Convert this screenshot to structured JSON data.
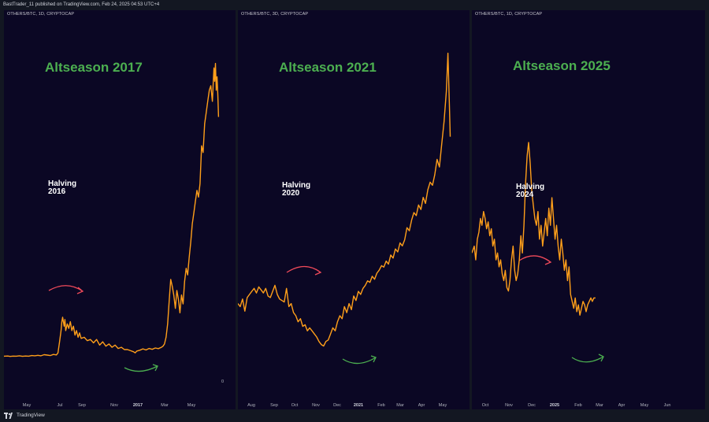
{
  "header": {
    "published": "BastTrader_11 published on TradingView.com, Feb 24, 2025 04:53 UTC+4"
  },
  "footer": {
    "brand": "TradingView"
  },
  "colors": {
    "line": "#ff9f1a",
    "title": "#4caf50",
    "red_arrow": "#f04a5a",
    "green_arrow": "#4caf50",
    "panel_bg": "#0b0724"
  },
  "icons": {
    "logo": "tradingview-logo-icon"
  },
  "chart_data": [
    {
      "type": "line",
      "symbol_label": "OTHERS/BTC, 1D, CRYPTOCAP",
      "title": "Altseason 2017",
      "annotation": "Halving 2016",
      "annotation_lines": [
        "Halving",
        "2016"
      ],
      "x_ticks": [
        "May",
        "Jul",
        "Sep",
        "Nov",
        "2017",
        "Mar",
        "May"
      ],
      "x_ticks_bold": [
        false,
        false,
        false,
        false,
        true,
        false,
        false
      ],
      "y_label": "0",
      "x": [
        0,
        5,
        8,
        12,
        16,
        20,
        24,
        28,
        32,
        36,
        40,
        44,
        48,
        52,
        56,
        60,
        64,
        68,
        70,
        72,
        74,
        75,
        76,
        78,
        79,
        80,
        82,
        84,
        86,
        88,
        90,
        92,
        94,
        96,
        98,
        100,
        104,
        108,
        112,
        116,
        120,
        124,
        128,
        132,
        136,
        140,
        144,
        148,
        152,
        156,
        160,
        164,
        168,
        170,
        172,
        176,
        180,
        184,
        188,
        192,
        196,
        200,
        204,
        206,
        208,
        210,
        212,
        214,
        216,
        218,
        220,
        222,
        224,
        226,
        228,
        230,
        232,
        234,
        236,
        238,
        240,
        242,
        244,
        246,
        248,
        250,
        252,
        254,
        256,
        258,
        260,
        262,
        264,
        266,
        268,
        270,
        272,
        273,
        274,
        275,
        276,
        277,
        278
      ],
      "y": [
        0.5,
        0.6,
        0.4,
        0.55,
        0.5,
        0.7,
        0.45,
        0.6,
        0.5,
        0.8,
        0.7,
        0.9,
        0.7,
        1.2,
        1.0,
        0.8,
        1.3,
        1.1,
        2.0,
        7.0,
        12.0,
        16.0,
        18.0,
        14.0,
        17.0,
        12.0,
        15.0,
        13.0,
        16.0,
        12.0,
        14.0,
        10.0,
        12.0,
        9.0,
        11.0,
        8.5,
        9.0,
        7.5,
        8.0,
        6.5,
        8.0,
        5.5,
        7.0,
        5.0,
        6.0,
        4.5,
        5.5,
        4.0,
        4.5,
        3.5,
        3.5,
        3.0,
        2.5,
        2.0,
        2.8,
        3.2,
        3.8,
        3.3,
        4.0,
        3.6,
        4.2,
        3.9,
        4.5,
        5.0,
        6.0,
        9.0,
        15.0,
        25.0,
        35.0,
        32.0,
        28.0,
        22.0,
        30.0,
        26.0,
        20.0,
        28.0,
        24.0,
        34.0,
        40.0,
        37.0,
        45.0,
        52.0,
        60.0,
        65.0,
        70.0,
        75.0,
        72.0,
        78.0,
        95.0,
        92.0,
        105.0,
        110.0,
        115.0,
        120.0,
        122.0,
        115.0,
        130.0,
        124.0,
        132.0,
        120.0,
        126.0,
        118.0,
        108.0
      ],
      "x_range": [
        0,
        300
      ],
      "y_range": [
        -5,
        140
      ]
    },
    {
      "type": "line",
      "symbol_label": "OTHERS/BTC, 3D, CRYPTOCAP",
      "title": "Altseason 2021",
      "annotation": "Halving 2020",
      "annotation_lines": [
        "Halving",
        "2020"
      ],
      "x_ticks": [
        "Aug",
        "Sep",
        "Oct",
        "Nov",
        "Dec",
        "2021",
        "Feb",
        "Mar",
        "Apr",
        "May"
      ],
      "x_ticks_bold": [
        false,
        false,
        false,
        false,
        false,
        true,
        false,
        false,
        false,
        false
      ],
      "y_label": "",
      "x": [
        0,
        3,
        6,
        9,
        12,
        15,
        18,
        21,
        24,
        27,
        30,
        33,
        36,
        39,
        42,
        45,
        48,
        51,
        54,
        57,
        60,
        63,
        66,
        69,
        72,
        75,
        78,
        81,
        84,
        87,
        90,
        93,
        96,
        99,
        102,
        105,
        108,
        111,
        114,
        117,
        120,
        123,
        126,
        129,
        132,
        135,
        138,
        141,
        144,
        147,
        150,
        153,
        156,
        159,
        162,
        165,
        168,
        171,
        174,
        177,
        180,
        183,
        186,
        189,
        192,
        195,
        198,
        201,
        204,
        207,
        210,
        213,
        216,
        219,
        222,
        225,
        228,
        231,
        234,
        237,
        240,
        243,
        246,
        249,
        252,
        255,
        258,
        261,
        264,
        267,
        270,
        272,
        274,
        275
      ],
      "y": [
        30,
        28,
        33,
        25,
        34,
        36,
        38,
        40,
        37,
        41,
        39,
        37,
        40,
        35,
        34,
        38,
        42,
        36,
        33,
        32,
        31,
        40,
        28,
        30,
        24,
        22,
        18,
        20,
        15,
        16,
        12,
        14,
        12,
        10,
        8,
        5,
        3,
        2,
        5,
        6,
        10,
        14,
        12,
        18,
        22,
        20,
        28,
        24,
        30,
        26,
        35,
        32,
        38,
        36,
        40,
        42,
        45,
        44,
        48,
        46,
        50,
        52,
        55,
        54,
        58,
        56,
        62,
        60,
        66,
        64,
        70,
        68,
        72,
        80,
        78,
        85,
        90,
        88,
        95,
        92,
        100,
        96,
        105,
        110,
        108,
        115,
        125,
        120,
        135,
        150,
        170,
        195,
        160,
        140
      ],
      "x_range": [
        0,
        300
      ],
      "y_range": [
        -5,
        200
      ]
    },
    {
      "type": "line",
      "symbol_label": "OTHERS/BTC, 1D, CRYPTOCAP",
      "title": "Altseason 2025",
      "annotation": "Halving 2024",
      "annotation_lines": [
        "Halving",
        "2024"
      ],
      "x_ticks": [
        "Oct",
        "Nov",
        "Dec",
        "2025",
        "Feb",
        "Mar",
        "Apr",
        "May",
        "Jun"
      ],
      "x_ticks_bold": [
        false,
        false,
        false,
        true,
        false,
        false,
        false,
        false,
        false
      ],
      "y_label": "",
      "x": [
        0,
        3,
        5,
        7,
        9,
        11,
        13,
        15,
        17,
        19,
        21,
        23,
        25,
        27,
        29,
        31,
        33,
        35,
        37,
        39,
        41,
        43,
        45,
        47,
        49,
        51,
        53,
        55,
        57,
        59,
        61,
        63,
        65,
        67,
        69,
        71,
        73,
        75,
        77,
        79,
        81,
        83,
        85,
        87,
        89,
        91,
        93,
        95,
        97,
        99,
        101,
        103,
        105,
        107,
        109,
        111,
        113,
        115,
        117,
        119,
        121,
        123,
        125,
        127,
        129,
        131,
        133,
        135,
        137,
        139,
        141,
        143,
        145,
        147,
        149,
        151,
        153,
        155,
        157,
        159
      ],
      "y": [
        20,
        22,
        18,
        24,
        26,
        30,
        28,
        32,
        30,
        27,
        29,
        25,
        27,
        22,
        24,
        18,
        20,
        16,
        18,
        14,
        12,
        15,
        10,
        9,
        12,
        18,
        22,
        15,
        12,
        14,
        18,
        25,
        20,
        28,
        40,
        48,
        52,
        46,
        38,
        34,
        30,
        28,
        32,
        24,
        28,
        22,
        26,
        30,
        25,
        33,
        28,
        36,
        30,
        24,
        28,
        22,
        18,
        24,
        20,
        15,
        18,
        12,
        16,
        8,
        6,
        4,
        7,
        3,
        5,
        2,
        4,
        6,
        5,
        3,
        5,
        6,
        7,
        6,
        7,
        7
      ],
      "x_range": [
        0,
        300
      ],
      "y_range": [
        -10,
        80
      ]
    }
  ]
}
